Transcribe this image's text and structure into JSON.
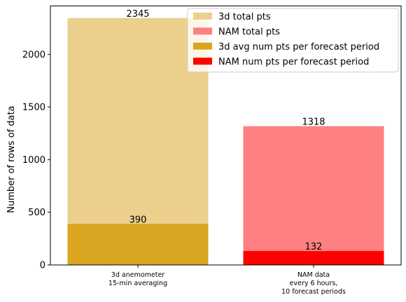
{
  "chart_data": {
    "type": "bar",
    "categories": [
      [
        "3d anemometer",
        "15-min averaging"
      ],
      [
        "NAM data",
        "every 6 hours,",
        "10 forecast periods"
      ]
    ],
    "series": [
      {
        "name": "3d total pts",
        "category_index": 0,
        "value": 2345,
        "color": "#eccf8d"
      },
      {
        "name": "NAM total pts",
        "category_index": 1,
        "value": 1318,
        "color": "#ff8080"
      },
      {
        "name": "3d avg num pts per forecast period",
        "category_index": 0,
        "value": 390,
        "color": "#daa520"
      },
      {
        "name": "NAM num pts per forecast period",
        "category_index": 1,
        "value": 132,
        "color": "#ff0000"
      }
    ],
    "ylabel": "Number of rows of data",
    "xlabel": "",
    "ylim": [
      0,
      2460
    ],
    "yticks": [
      0,
      500,
      1000,
      1500,
      2000
    ],
    "grid": false,
    "legend_position": "top-right"
  }
}
